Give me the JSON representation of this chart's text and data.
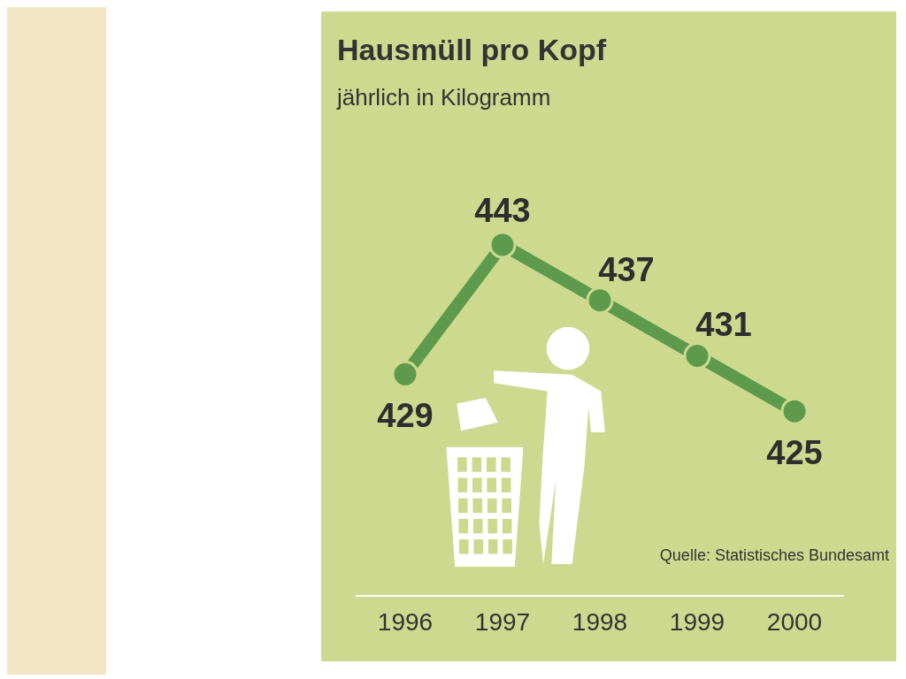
{
  "chart_data": {
    "type": "line",
    "title": "Hausmüll pro Kopf",
    "subtitle": "jährlich in Kilogramm",
    "categories": [
      "1996",
      "1997",
      "1998",
      "1999",
      "2000"
    ],
    "series": [
      {
        "color": "#5e9a4c",
        "values": [
          429,
          443,
          437,
          431,
          425
        ]
      }
    ],
    "data_labels": true,
    "marker": "circle",
    "grid": false,
    "legend": false,
    "tick_labels": "x",
    "annotations": [
      "Quelle: Statistisches Bundesamt"
    ]
  }
}
